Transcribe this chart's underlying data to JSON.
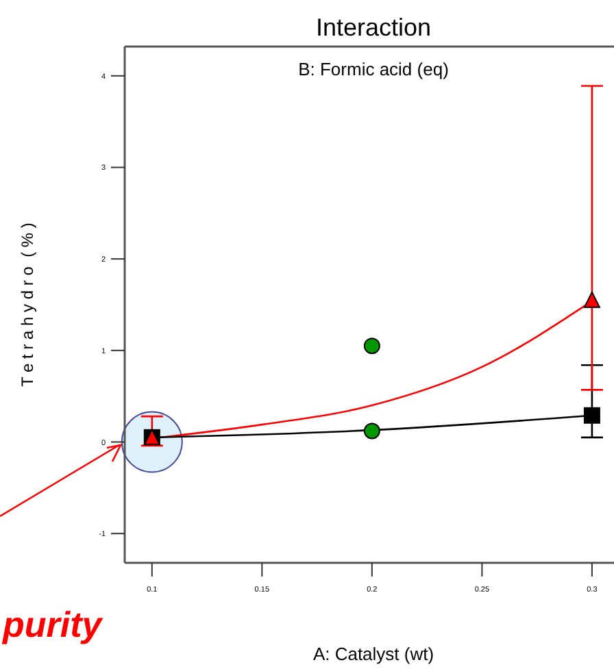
{
  "chart_data": {
    "type": "line",
    "title": "Interaction",
    "subtitle": "B: Formic acid (eq)",
    "xlabel": "A: Catalyst (wt)",
    "ylabel": "T e t r a h y d r o  ( % )",
    "annotations": [
      "purity"
    ],
    "xlim": [
      0.0876,
      0.31
    ],
    "ylim": [
      -1.32,
      4.32
    ],
    "xticks": [
      0.1,
      0.15,
      0.2,
      0.25,
      0.3
    ],
    "yticks": [
      -1,
      0,
      1,
      2,
      3,
      4
    ],
    "grid": false,
    "series": [
      {
        "color": "#ff0000",
        "x": [
          0.1,
          0.15,
          0.2,
          0.25,
          0.3
        ],
        "values": [
          0.04,
          0.19,
          0.4,
          0.82,
          1.54
        ],
        "marker": "none",
        "line_style": "solid"
      },
      {
        "color": "#000000",
        "x": [
          0.1,
          0.2,
          0.3
        ],
        "values": [
          0.05,
          0.13,
          0.29
        ],
        "marker": "none",
        "line_style": "solid"
      },
      {
        "type": "scatter",
        "color": "#000000",
        "x": [
          0.1,
          0.3
        ],
        "values": [
          0.05,
          0.29
        ],
        "errors": [
          null,
          [
            0.05,
            0.84
          ]
        ],
        "marker": "square"
      },
      {
        "type": "scatter",
        "color": "#ff0000",
        "x": [
          0.1,
          0.3
        ],
        "values": [
          0.04,
          1.54
        ],
        "errors": [
          [
            -0.04,
            0.28
          ],
          [
            0.57,
            3.89
          ]
        ],
        "marker": "triangle"
      },
      {
        "type": "scatter",
        "color": "#009900",
        "x": [
          0.2,
          0.2
        ],
        "values": [
          1.05,
          0.12
        ],
        "marker": "circle"
      }
    ]
  }
}
